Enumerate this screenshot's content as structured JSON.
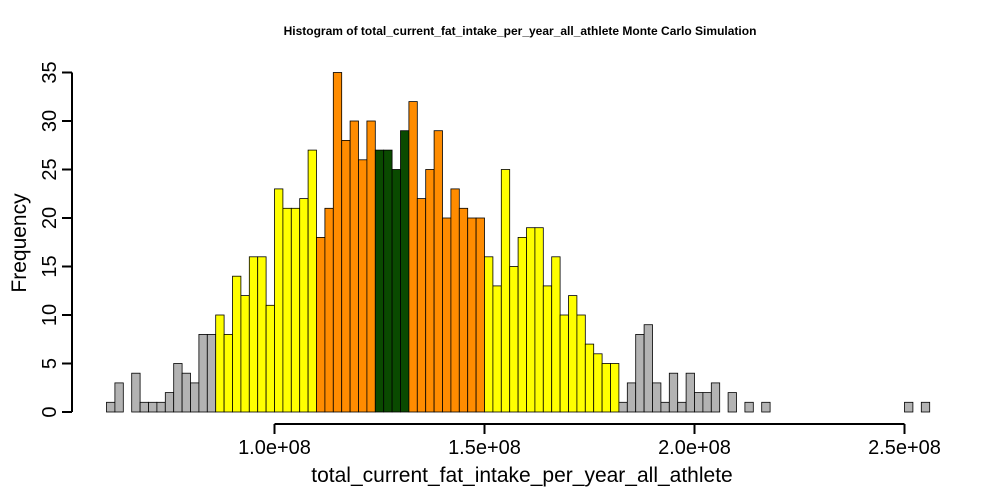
{
  "chart_data": {
    "type": "bar",
    "title": "Histogram of  total_current_fat_intake_per_year_all_athlete  Monte Carlo Simulation",
    "xlabel": "total_current_fat_intake_per_year_all_athlete",
    "ylabel": "Frequency",
    "x_ticks": [
      {
        "value": 100000000,
        "label": "1.0e+08"
      },
      {
        "value": 150000000,
        "label": "1.5e+08"
      },
      {
        "value": 200000000,
        "label": "2.0e+08"
      },
      {
        "value": 250000000,
        "label": "2.5e+08"
      }
    ],
    "y_ticks": [
      0,
      5,
      10,
      15,
      20,
      25,
      30,
      35
    ],
    "xlim": [
      60000000,
      255000000
    ],
    "ylim": [
      0,
      35
    ],
    "bin_width": 2000000,
    "bin_start": 60000000,
    "grid": false,
    "legend": "none",
    "colors": {
      "gray": "#b3b3b3",
      "yellow": "#ffff00",
      "orange": "#ff8c00",
      "green": "#0a4a00"
    },
    "bars": [
      {
        "x": 60000000,
        "count": 1,
        "color": "gray"
      },
      {
        "x": 62000000,
        "count": 3,
        "color": "gray"
      },
      {
        "x": 64000000,
        "count": 0,
        "color": "gray"
      },
      {
        "x": 66000000,
        "count": 4,
        "color": "gray"
      },
      {
        "x": 68000000,
        "count": 1,
        "color": "gray"
      },
      {
        "x": 70000000,
        "count": 1,
        "color": "gray"
      },
      {
        "x": 72000000,
        "count": 1,
        "color": "gray"
      },
      {
        "x": 74000000,
        "count": 2,
        "color": "gray"
      },
      {
        "x": 76000000,
        "count": 5,
        "color": "gray"
      },
      {
        "x": 78000000,
        "count": 4,
        "color": "gray"
      },
      {
        "x": 80000000,
        "count": 3,
        "color": "gray"
      },
      {
        "x": 82000000,
        "count": 8,
        "color": "gray"
      },
      {
        "x": 84000000,
        "count": 8,
        "color": "gray"
      },
      {
        "x": 86000000,
        "count": 10,
        "color": "yellow"
      },
      {
        "x": 88000000,
        "count": 8,
        "color": "yellow"
      },
      {
        "x": 90000000,
        "count": 14,
        "color": "yellow"
      },
      {
        "x": 92000000,
        "count": 12,
        "color": "yellow"
      },
      {
        "x": 94000000,
        "count": 16,
        "color": "yellow"
      },
      {
        "x": 96000000,
        "count": 16,
        "color": "yellow"
      },
      {
        "x": 98000000,
        "count": 11,
        "color": "yellow"
      },
      {
        "x": 100000000,
        "count": 23,
        "color": "yellow"
      },
      {
        "x": 102000000,
        "count": 21,
        "color": "yellow"
      },
      {
        "x": 104000000,
        "count": 21,
        "color": "yellow"
      },
      {
        "x": 106000000,
        "count": 22,
        "color": "yellow"
      },
      {
        "x": 108000000,
        "count": 27,
        "color": "yellow"
      },
      {
        "x": 110000000,
        "count": 18,
        "color": "orange"
      },
      {
        "x": 112000000,
        "count": 21,
        "color": "orange"
      },
      {
        "x": 114000000,
        "count": 35,
        "color": "orange"
      },
      {
        "x": 116000000,
        "count": 28,
        "color": "orange"
      },
      {
        "x": 118000000,
        "count": 30,
        "color": "orange"
      },
      {
        "x": 120000000,
        "count": 26,
        "color": "orange"
      },
      {
        "x": 122000000,
        "count": 30,
        "color": "orange"
      },
      {
        "x": 124000000,
        "count": 27,
        "color": "green"
      },
      {
        "x": 126000000,
        "count": 27,
        "color": "green"
      },
      {
        "x": 128000000,
        "count": 25,
        "color": "green"
      },
      {
        "x": 130000000,
        "count": 29,
        "color": "green"
      },
      {
        "x": 132000000,
        "count": 32,
        "color": "orange"
      },
      {
        "x": 134000000,
        "count": 22,
        "color": "orange"
      },
      {
        "x": 136000000,
        "count": 25,
        "color": "orange"
      },
      {
        "x": 138000000,
        "count": 29,
        "color": "orange"
      },
      {
        "x": 140000000,
        "count": 20,
        "color": "orange"
      },
      {
        "x": 142000000,
        "count": 23,
        "color": "orange"
      },
      {
        "x": 144000000,
        "count": 21,
        "color": "orange"
      },
      {
        "x": 146000000,
        "count": 20,
        "color": "orange"
      },
      {
        "x": 148000000,
        "count": 20,
        "color": "orange"
      },
      {
        "x": 150000000,
        "count": 16,
        "color": "yellow"
      },
      {
        "x": 152000000,
        "count": 13,
        "color": "yellow"
      },
      {
        "x": 154000000,
        "count": 25,
        "color": "yellow"
      },
      {
        "x": 156000000,
        "count": 15,
        "color": "yellow"
      },
      {
        "x": 158000000,
        "count": 18,
        "color": "yellow"
      },
      {
        "x": 160000000,
        "count": 19,
        "color": "yellow"
      },
      {
        "x": 162000000,
        "count": 19,
        "color": "yellow"
      },
      {
        "x": 164000000,
        "count": 13,
        "color": "yellow"
      },
      {
        "x": 166000000,
        "count": 16,
        "color": "yellow"
      },
      {
        "x": 168000000,
        "count": 10,
        "color": "yellow"
      },
      {
        "x": 170000000,
        "count": 12,
        "color": "yellow"
      },
      {
        "x": 172000000,
        "count": 10,
        "color": "yellow"
      },
      {
        "x": 174000000,
        "count": 7,
        "color": "yellow"
      },
      {
        "x": 176000000,
        "count": 6,
        "color": "yellow"
      },
      {
        "x": 178000000,
        "count": 5,
        "color": "yellow"
      },
      {
        "x": 180000000,
        "count": 5,
        "color": "yellow"
      },
      {
        "x": 182000000,
        "count": 1,
        "color": "gray"
      },
      {
        "x": 184000000,
        "count": 3,
        "color": "gray"
      },
      {
        "x": 186000000,
        "count": 8,
        "color": "gray"
      },
      {
        "x": 188000000,
        "count": 9,
        "color": "gray"
      },
      {
        "x": 190000000,
        "count": 3,
        "color": "gray"
      },
      {
        "x": 192000000,
        "count": 1,
        "color": "gray"
      },
      {
        "x": 194000000,
        "count": 4,
        "color": "gray"
      },
      {
        "x": 196000000,
        "count": 1,
        "color": "gray"
      },
      {
        "x": 198000000,
        "count": 4,
        "color": "gray"
      },
      {
        "x": 200000000,
        "count": 2,
        "color": "gray"
      },
      {
        "x": 202000000,
        "count": 2,
        "color": "gray"
      },
      {
        "x": 204000000,
        "count": 3,
        "color": "gray"
      },
      {
        "x": 206000000,
        "count": 0,
        "color": "gray"
      },
      {
        "x": 208000000,
        "count": 2,
        "color": "gray"
      },
      {
        "x": 210000000,
        "count": 0,
        "color": "gray"
      },
      {
        "x": 212000000,
        "count": 1,
        "color": "gray"
      },
      {
        "x": 214000000,
        "count": 0,
        "color": "gray"
      },
      {
        "x": 216000000,
        "count": 1,
        "color": "gray"
      },
      {
        "x": 218000000,
        "count": 0,
        "color": "gray"
      },
      {
        "x": 220000000,
        "count": 0,
        "color": "gray"
      },
      {
        "x": 222000000,
        "count": 0,
        "color": "gray"
      },
      {
        "x": 224000000,
        "count": 0,
        "color": "gray"
      },
      {
        "x": 226000000,
        "count": 0,
        "color": "gray"
      },
      {
        "x": 228000000,
        "count": 0,
        "color": "gray"
      },
      {
        "x": 230000000,
        "count": 0,
        "color": "gray"
      },
      {
        "x": 232000000,
        "count": 0,
        "color": "gray"
      },
      {
        "x": 234000000,
        "count": 0,
        "color": "gray"
      },
      {
        "x": 236000000,
        "count": 0,
        "color": "gray"
      },
      {
        "x": 238000000,
        "count": 0,
        "color": "gray"
      },
      {
        "x": 240000000,
        "count": 0,
        "color": "gray"
      },
      {
        "x": 242000000,
        "count": 0,
        "color": "gray"
      },
      {
        "x": 244000000,
        "count": 0,
        "color": "gray"
      },
      {
        "x": 246000000,
        "count": 0,
        "color": "gray"
      },
      {
        "x": 248000000,
        "count": 0,
        "color": "gray"
      },
      {
        "x": 250000000,
        "count": 1,
        "color": "gray"
      },
      {
        "x": 252000000,
        "count": 0,
        "color": "gray"
      },
      {
        "x": 254000000,
        "count": 1,
        "color": "gray"
      }
    ]
  }
}
